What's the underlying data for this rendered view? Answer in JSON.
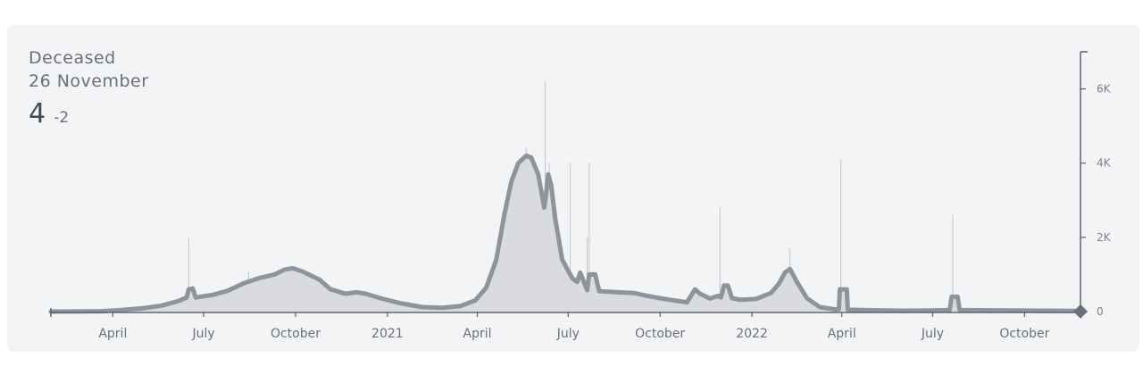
{
  "header": {
    "title": "Deceased",
    "date": "26 November",
    "value": "4",
    "delta": "-2"
  },
  "colors": {
    "line": "#8f949c",
    "fill": "#d9dbde",
    "spike": "#c9ccd1",
    "axis": "#5f636d",
    "background": "#f3f4f6"
  },
  "chart_data": {
    "type": "area",
    "title": "",
    "xlabel": "",
    "ylabel": "",
    "ylim": [
      0,
      7000
    ],
    "xlim": [
      "2020-01-30",
      "2022-11-26"
    ],
    "grid": false,
    "y_axis_position": "right",
    "x_ticks": [
      {
        "date": "2020-04-01",
        "label": "April"
      },
      {
        "date": "2020-07-01",
        "label": "July"
      },
      {
        "date": "2020-10-01",
        "label": "October"
      },
      {
        "date": "2021-01-01",
        "label": "2021"
      },
      {
        "date": "2021-04-01",
        "label": "April"
      },
      {
        "date": "2021-07-01",
        "label": "July"
      },
      {
        "date": "2021-10-01",
        "label": "October"
      },
      {
        "date": "2022-01-01",
        "label": "2022"
      },
      {
        "date": "2022-04-01",
        "label": "April"
      },
      {
        "date": "2022-07-01",
        "label": "July"
      },
      {
        "date": "2022-10-01",
        "label": "October"
      }
    ],
    "y_ticks": [
      {
        "value": 0,
        "label": "0"
      },
      {
        "value": 2000,
        "label": "2K"
      },
      {
        "value": 4000,
        "label": "4K"
      },
      {
        "value": 6000,
        "label": "6K"
      }
    ],
    "series": [
      {
        "name": "",
        "kind": "7-day average",
        "points": [
          [
            "2020-01-30",
            0
          ],
          [
            "2020-03-20",
            10
          ],
          [
            "2020-04-10",
            40
          ],
          [
            "2020-05-01",
            90
          ],
          [
            "2020-05-20",
            160
          ],
          [
            "2020-06-05",
            280
          ],
          [
            "2020-06-14",
            380
          ],
          [
            "2020-06-16",
            600
          ],
          [
            "2020-06-20",
            620
          ],
          [
            "2020-06-23",
            380
          ],
          [
            "2020-07-10",
            450
          ],
          [
            "2020-07-25",
            560
          ],
          [
            "2020-08-10",
            760
          ],
          [
            "2020-08-25",
            900
          ],
          [
            "2020-09-10",
            1000
          ],
          [
            "2020-09-20",
            1130
          ],
          [
            "2020-09-28",
            1170
          ],
          [
            "2020-10-08",
            1080
          ],
          [
            "2020-10-25",
            860
          ],
          [
            "2020-11-05",
            600
          ],
          [
            "2020-11-10",
            560
          ],
          [
            "2020-11-20",
            480
          ],
          [
            "2020-12-01",
            520
          ],
          [
            "2020-12-10",
            480
          ],
          [
            "2020-12-25",
            360
          ],
          [
            "2021-01-15",
            220
          ],
          [
            "2021-02-05",
            120
          ],
          [
            "2021-02-25",
            100
          ],
          [
            "2021-03-15",
            150
          ],
          [
            "2021-03-30",
            300
          ],
          [
            "2021-04-10",
            650
          ],
          [
            "2021-04-20",
            1400
          ],
          [
            "2021-04-28",
            2600
          ],
          [
            "2021-05-05",
            3500
          ],
          [
            "2021-05-12",
            4000
          ],
          [
            "2021-05-20",
            4200
          ],
          [
            "2021-05-25",
            4150
          ],
          [
            "2021-06-01",
            3700
          ],
          [
            "2021-06-07",
            2800
          ],
          [
            "2021-06-09",
            3200
          ],
          [
            "2021-06-11",
            3700
          ],
          [
            "2021-06-14",
            3400
          ],
          [
            "2021-06-18",
            2500
          ],
          [
            "2021-06-25",
            1400
          ],
          [
            "2021-07-05",
            900
          ],
          [
            "2021-07-10",
            800
          ],
          [
            "2021-07-13",
            1050
          ],
          [
            "2021-07-17",
            780
          ],
          [
            "2021-07-20",
            580
          ],
          [
            "2021-07-22",
            1000
          ],
          [
            "2021-07-28",
            1000
          ],
          [
            "2021-08-01",
            550
          ],
          [
            "2021-08-20",
            520
          ],
          [
            "2021-09-05",
            500
          ],
          [
            "2021-09-15",
            440
          ],
          [
            "2021-10-01",
            360
          ],
          [
            "2021-10-15",
            300
          ],
          [
            "2021-10-28",
            250
          ],
          [
            "2021-11-05",
            600
          ],
          [
            "2021-11-10",
            480
          ],
          [
            "2021-11-20",
            350
          ],
          [
            "2021-11-28",
            420
          ],
          [
            "2021-12-01",
            380
          ],
          [
            "2021-12-04",
            700
          ],
          [
            "2021-12-08",
            700
          ],
          [
            "2021-12-12",
            360
          ],
          [
            "2021-12-20",
            320
          ],
          [
            "2022-01-05",
            340
          ],
          [
            "2022-01-20",
            500
          ],
          [
            "2022-01-28",
            750
          ],
          [
            "2022-02-03",
            1050
          ],
          [
            "2022-02-08",
            1150
          ],
          [
            "2022-02-15",
            800
          ],
          [
            "2022-02-25",
            360
          ],
          [
            "2022-03-10",
            120
          ],
          [
            "2022-03-25",
            60
          ],
          [
            "2022-03-29",
            60
          ],
          [
            "2022-03-30",
            600
          ],
          [
            "2022-04-06",
            600
          ],
          [
            "2022-04-07",
            50
          ],
          [
            "2022-05-01",
            35
          ],
          [
            "2022-06-01",
            25
          ],
          [
            "2022-07-01",
            30
          ],
          [
            "2022-07-18",
            40
          ],
          [
            "2022-07-20",
            400
          ],
          [
            "2022-07-26",
            400
          ],
          [
            "2022-07-28",
            40
          ],
          [
            "2022-08-15",
            35
          ],
          [
            "2022-09-15",
            30
          ],
          [
            "2022-10-15",
            25
          ],
          [
            "2022-11-26",
            20
          ]
        ]
      },
      {
        "name": "",
        "kind": "daily",
        "spikes": [
          [
            "2020-06-16",
            2000
          ],
          [
            "2020-08-15",
            1100
          ],
          [
            "2021-05-20",
            4400
          ],
          [
            "2021-06-08",
            6200
          ],
          [
            "2021-06-12",
            4000
          ],
          [
            "2021-07-03",
            4000
          ],
          [
            "2021-07-20",
            2000
          ],
          [
            "2021-07-22",
            4000
          ],
          [
            "2021-11-30",
            2800
          ],
          [
            "2022-02-08",
            1700
          ],
          [
            "2022-03-31",
            4100
          ],
          [
            "2022-07-21",
            2600
          ]
        ]
      }
    ],
    "current_marker": {
      "date": "2022-11-26",
      "value": 4
    }
  }
}
